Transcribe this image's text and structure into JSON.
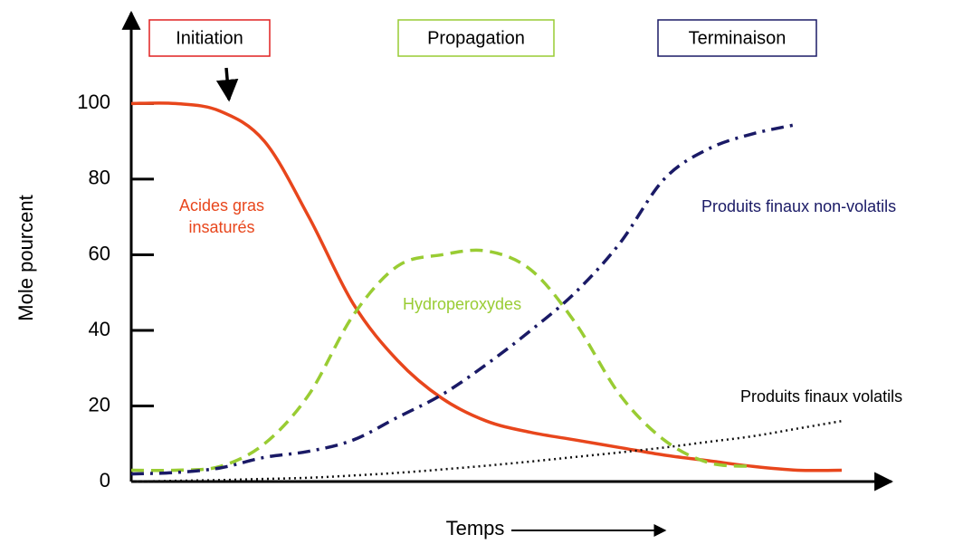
{
  "chart_data": {
    "type": "line",
    "xlabel": "Temps",
    "ylabel": "Mole pourcent",
    "ylim": [
      0,
      125
    ],
    "yticks": [
      0,
      20,
      40,
      60,
      80,
      100
    ],
    "categories": [
      null,
      null,
      null,
      null,
      null,
      null,
      null,
      null,
      null,
      null,
      null,
      null,
      null,
      null,
      null,
      null,
      null
    ],
    "phases": [
      {
        "label": "Initiation",
        "color": "#e02020"
      },
      {
        "label": "Propagation",
        "color": "#99cc33"
      },
      {
        "label": "Terminaison",
        "color": "#1a1a66"
      }
    ],
    "series": [
      {
        "name": "Acides gras insaturés",
        "color": "#e8461c",
        "dash": "solid",
        "values": [
          100,
          100,
          98,
          90,
          70,
          47,
          32,
          22,
          16,
          13,
          11,
          9,
          7,
          5.5,
          4,
          3,
          3
        ]
      },
      {
        "name": "Hydroperoxydes",
        "color": "#99cc33",
        "dash": "dashed",
        "values": [
          3,
          3,
          4,
          10,
          23,
          44,
          57,
          60,
          61,
          56,
          42,
          23,
          11,
          5,
          4,
          null,
          null
        ]
      },
      {
        "name": "Produits finaux non-volatils",
        "color": "#1a1a66",
        "dash": "dashdot",
        "values": [
          2,
          2.4,
          3.6,
          6.4,
          8,
          11,
          17,
          23,
          31,
          40,
          50,
          63,
          80,
          88,
          92,
          94.5,
          null
        ]
      },
      {
        "name": "Produits finaux volatils",
        "color": "#111111",
        "dash": "dotted",
        "values": [
          0,
          0.2,
          0.4,
          0.7,
          1,
          1.6,
          2.3,
          3.2,
          4.2,
          5.3,
          6.5,
          7.7,
          9,
          10.5,
          12,
          14,
          16
        ]
      }
    ]
  }
}
